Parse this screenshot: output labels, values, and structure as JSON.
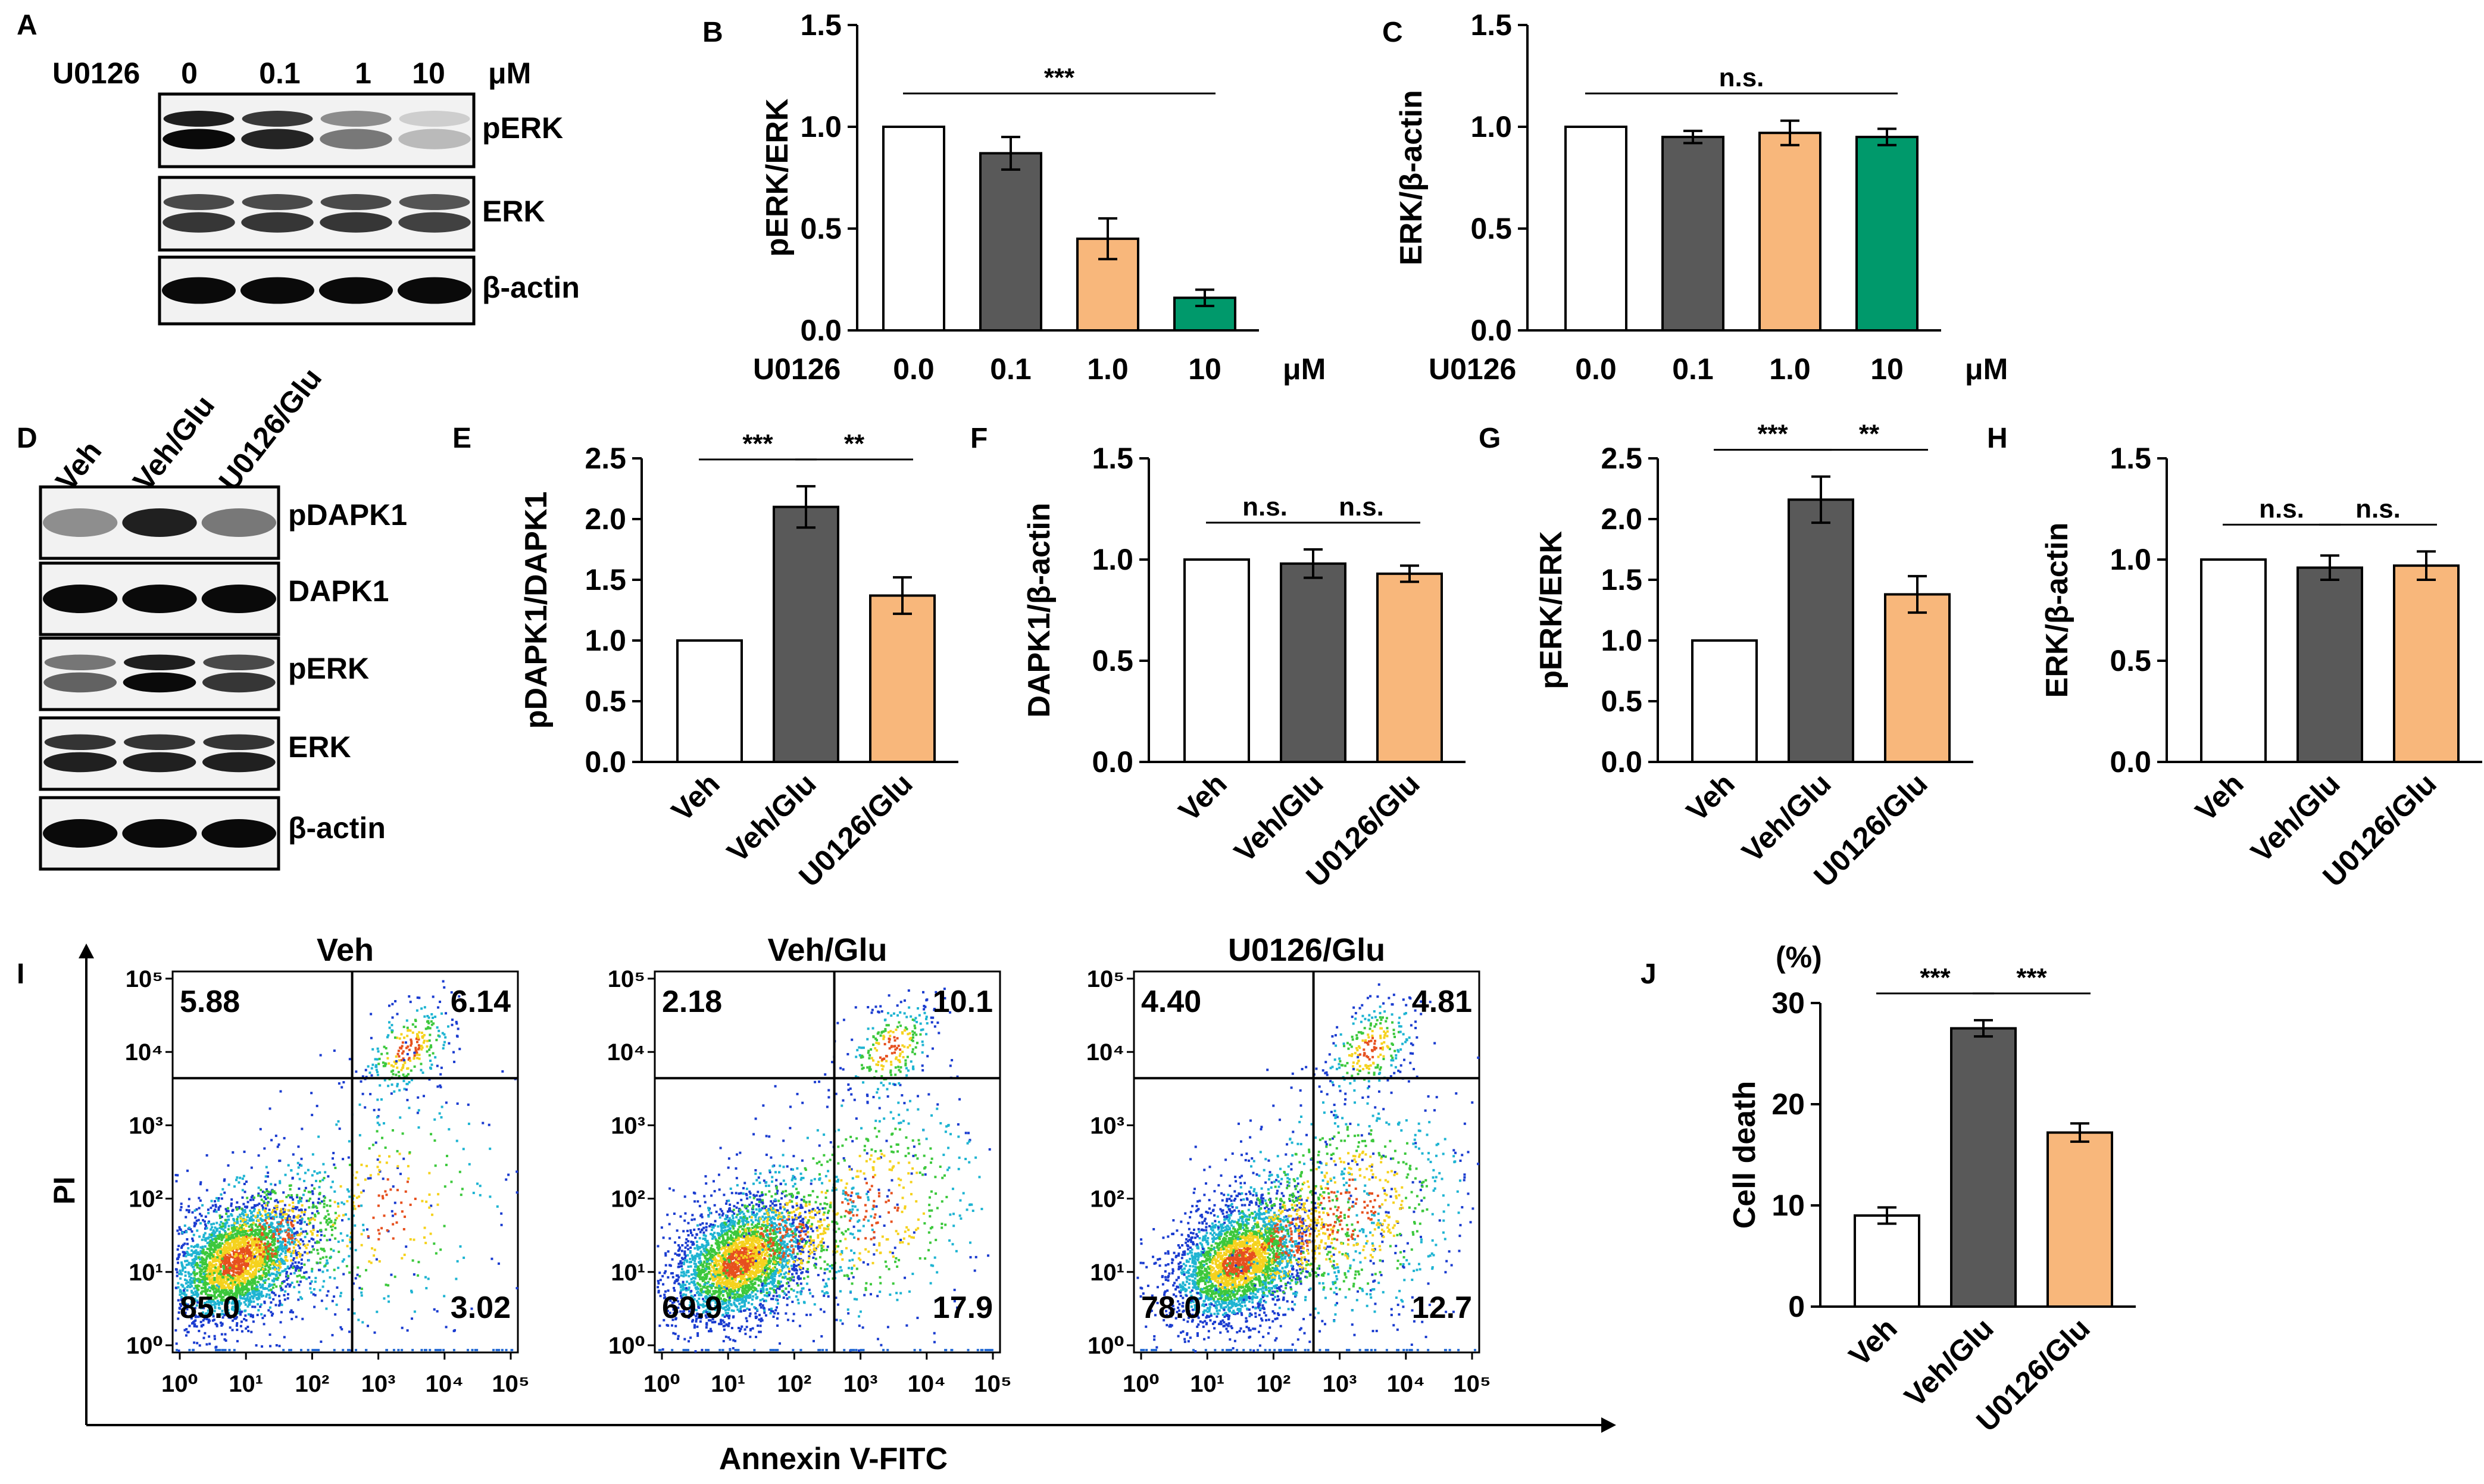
{
  "colors": {
    "white": "#ffffff",
    "dark": "#595959",
    "orange": "#f8b77b",
    "green": "#00996b",
    "black": "#000000"
  },
  "panel_letters": {
    "A": "A",
    "B": "B",
    "C": "C",
    "D": "D",
    "E": "E",
    "F": "F",
    "G": "G",
    "H": "H",
    "I": "I",
    "J": "J"
  },
  "western_a": {
    "treatment": "U0126",
    "unit": "μM",
    "doses": [
      "0",
      "0.1",
      "1",
      "10"
    ],
    "blots": [
      "pERK",
      "ERK",
      "β-actin"
    ],
    "intensity": {
      "pERK": [
        1.0,
        0.88,
        0.5,
        0.2
      ],
      "ERK": [
        0.8,
        0.8,
        0.8,
        0.75
      ],
      "β-actin": [
        1.0,
        1.0,
        1.0,
        1.0
      ]
    }
  },
  "western_d": {
    "lanes": [
      "Veh",
      "Veh/Glu",
      "U0126/Glu"
    ],
    "blots": [
      "pDAPK1",
      "DAPK1",
      "pERK",
      "ERK",
      "β-actin"
    ],
    "intensity": {
      "pDAPK1": [
        0.4,
        0.9,
        0.5
      ],
      "DAPK1": [
        1.0,
        1.0,
        1.0
      ],
      "pERK": [
        0.6,
        1.0,
        0.8
      ],
      "ERK": [
        0.9,
        0.9,
        0.9
      ],
      "β-actin": [
        1.0,
        1.0,
        1.0
      ]
    }
  },
  "flow": {
    "ylabel": "PI",
    "xlabel": "Annexin V-FITC",
    "xticks": [
      "10⁰",
      "10¹",
      "10²",
      "10³",
      "10⁴",
      "10⁵"
    ],
    "yticks": [
      "10⁰",
      "10¹",
      "10²",
      "10³",
      "10⁴",
      "10⁵"
    ],
    "plots": [
      {
        "title": "Veh",
        "ul": "5.88",
        "ur": "6.14",
        "ll": "85.0",
        "lr": "3.02"
      },
      {
        "title": "Veh/Glu",
        "ul": "2.18",
        "ur": "10.1",
        "ll": "69.9",
        "lr": "17.9"
      },
      {
        "title": "U0126/Glu",
        "ul": "4.40",
        "ur": "4.81",
        "ll": "78.0",
        "lr": "12.7"
      }
    ]
  },
  "chart_data": [
    {
      "id": "B",
      "type": "bar",
      "title": "",
      "xlabel_prefix": "U0126",
      "xlabel_unit": "μM",
      "ylabel": "pERK/ERK",
      "categories": [
        "0.0",
        "0.1",
        "1.0",
        "10"
      ],
      "values": [
        1.0,
        0.87,
        0.45,
        0.16
      ],
      "errors": [
        0,
        0.08,
        0.1,
        0.04
      ],
      "colors": [
        "white",
        "dark",
        "orange",
        "green"
      ],
      "ylim": [
        0,
        1.5
      ],
      "yticks": [
        "0.0",
        "0.5",
        "1.0",
        "1.5"
      ],
      "annotations": [
        {
          "text": "***",
          "from": 0,
          "to": 3
        }
      ]
    },
    {
      "id": "C",
      "type": "bar",
      "title": "",
      "xlabel_prefix": "U0126",
      "xlabel_unit": "μM",
      "ylabel": "ERK/β-actin",
      "categories": [
        "0.0",
        "0.1",
        "1.0",
        "10"
      ],
      "values": [
        1.0,
        0.95,
        0.97,
        0.95
      ],
      "errors": [
        0,
        0.03,
        0.06,
        0.04
      ],
      "colors": [
        "white",
        "dark",
        "orange",
        "green"
      ],
      "ylim": [
        0,
        1.5
      ],
      "yticks": [
        "0.0",
        "0.5",
        "1.0",
        "1.5"
      ],
      "annotations": [
        {
          "text": "n.s.",
          "from": 0,
          "to": 3
        }
      ]
    },
    {
      "id": "E",
      "type": "bar",
      "title": "",
      "ylabel": "pDAPK1/DAPK1",
      "categories": [
        "Veh",
        "Veh/Glu",
        "U0126/Glu"
      ],
      "values": [
        1.0,
        2.1,
        1.37
      ],
      "errors": [
        0,
        0.17,
        0.15
      ],
      "colors": [
        "white",
        "dark",
        "orange"
      ],
      "ylim": [
        0,
        2.5
      ],
      "yticks": [
        "0.0",
        "0.5",
        "1.0",
        "1.5",
        "2.0",
        "2.5"
      ],
      "annotations": [
        {
          "text": "***",
          "from": 0,
          "to": 1
        },
        {
          "text": "**",
          "from": 1,
          "to": 2
        }
      ]
    },
    {
      "id": "F",
      "type": "bar",
      "title": "",
      "ylabel": "DAPK1/β-actin",
      "categories": [
        "Veh",
        "Veh/Glu",
        "U0126/Glu"
      ],
      "values": [
        1.0,
        0.98,
        0.93
      ],
      "errors": [
        0,
        0.07,
        0.04
      ],
      "colors": [
        "white",
        "dark",
        "orange"
      ],
      "ylim": [
        0,
        1.5
      ],
      "yticks": [
        "0.0",
        "0.5",
        "1.0",
        "1.5"
      ],
      "annotations": [
        {
          "text": "n.s.",
          "from": 0,
          "to": 1
        },
        {
          "text": "n.s.",
          "from": 1,
          "to": 2
        }
      ]
    },
    {
      "id": "G",
      "type": "bar",
      "title": "",
      "ylabel": "pERK/ERK",
      "categories": [
        "Veh",
        "Veh/Glu",
        "U0126/Glu"
      ],
      "values": [
        1.0,
        2.16,
        1.38
      ],
      "errors": [
        0,
        0.19,
        0.15
      ],
      "colors": [
        "white",
        "dark",
        "orange"
      ],
      "ylim": [
        0,
        2.5
      ],
      "yticks": [
        "0.0",
        "0.5",
        "1.0",
        "1.5",
        "2.0",
        "2.5"
      ],
      "annotations": [
        {
          "text": "***",
          "from": 0,
          "to": 1
        },
        {
          "text": "**",
          "from": 1,
          "to": 2
        }
      ]
    },
    {
      "id": "H",
      "type": "bar",
      "title": "",
      "ylabel": "ERK/β-actin",
      "categories": [
        "Veh",
        "Veh/Glu",
        "U0126/Glu"
      ],
      "values": [
        1.0,
        0.96,
        0.97
      ],
      "errors": [
        0,
        0.06,
        0.07
      ],
      "colors": [
        "white",
        "dark",
        "orange"
      ],
      "ylim": [
        0,
        1.5
      ],
      "yticks": [
        "0.0",
        "0.5",
        "1.0",
        "1.5"
      ],
      "annotations": [
        {
          "text": "n.s.",
          "from": 0,
          "to": 1
        },
        {
          "text": "n.s.",
          "from": 1,
          "to": 2
        }
      ]
    },
    {
      "id": "J",
      "type": "bar",
      "title": "",
      "ylabel": "Cell death",
      "unit_label": "(%)",
      "categories": [
        "Veh",
        "Veh/Glu",
        "U0126/Glu"
      ],
      "values": [
        9.0,
        27.5,
        17.2
      ],
      "errors": [
        0.8,
        0.8,
        0.9
      ],
      "colors": [
        "white",
        "dark",
        "orange"
      ],
      "ylim": [
        0,
        30
      ],
      "yticks": [
        "0",
        "10",
        "20",
        "30"
      ],
      "annotations": [
        {
          "text": "***",
          "from": 0,
          "to": 1
        },
        {
          "text": "***",
          "from": 1,
          "to": 2
        }
      ]
    }
  ]
}
